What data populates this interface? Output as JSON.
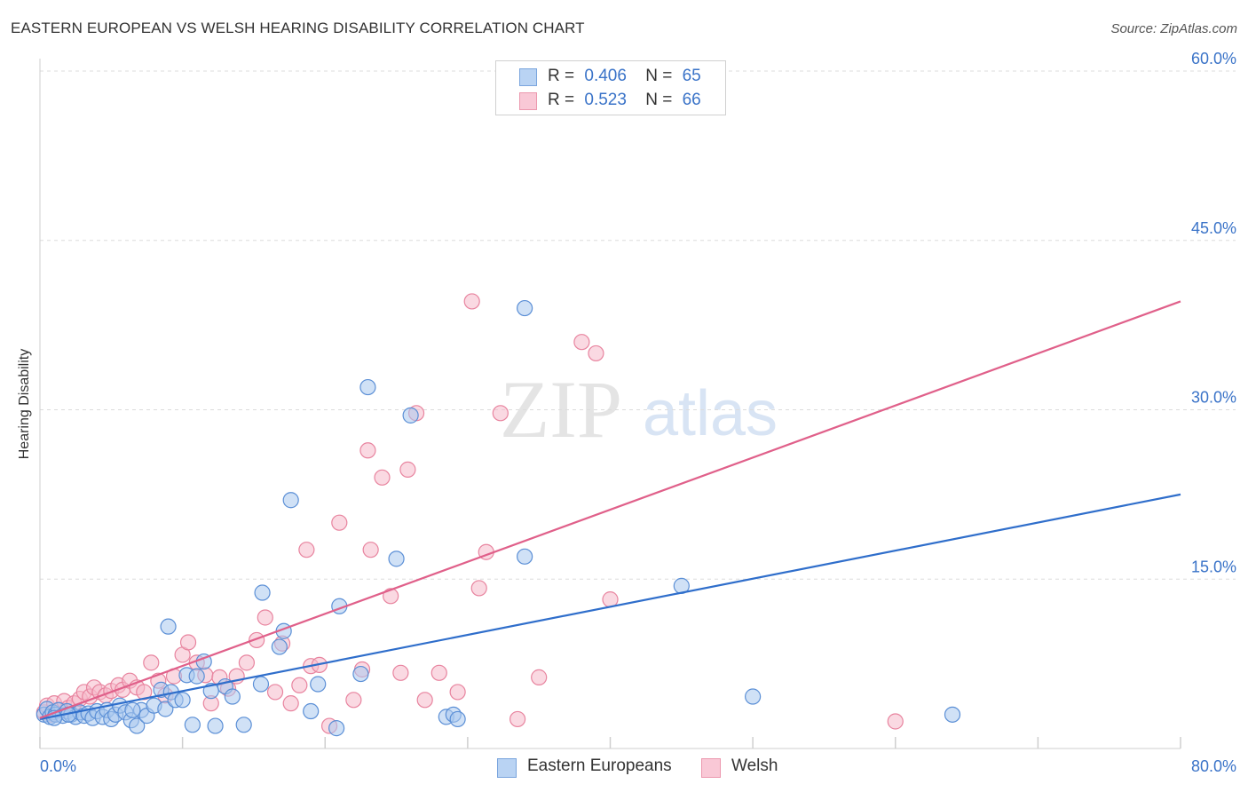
{
  "title": "EASTERN EUROPEAN VS WELSH HEARING DISABILITY CORRELATION CHART",
  "source": "Source: ZipAtlas.com",
  "watermark": {
    "zip": "ZIP",
    "atlas": "atlas"
  },
  "legend": {
    "rows": [
      {
        "r_label": "R =",
        "r_value": "0.406",
        "n_label": "N =",
        "n_value": "65"
      },
      {
        "r_label": "R =",
        "r_value": "0.523",
        "n_label": "N =",
        "n_value": "66"
      }
    ]
  },
  "colors": {
    "blue_fill": "#a9c8ef",
    "blue_stroke": "#5b8fd6",
    "blue_line": "#2f6ecb",
    "pink_fill": "#f6b9cb",
    "pink_stroke": "#e8849f",
    "pink_line": "#e0608a",
    "grid": "#dcdcdc",
    "tick_label": "#3a73c8"
  },
  "chart_data": {
    "type": "scatter",
    "title": "EASTERN EUROPEAN VS WELSH HEARING DISABILITY CORRELATION CHART",
    "xlabel": "",
    "ylabel": "Hearing Disability",
    "xlim": [
      0,
      80
    ],
    "ylim": [
      0,
      60
    ],
    "x_tick_labels": [
      "0.0%",
      "80.0%"
    ],
    "y_ticks": [
      15,
      30,
      45,
      60
    ],
    "y_tick_labels": [
      "15.0%",
      "30.0%",
      "45.0%",
      "60.0%"
    ],
    "legend_position": "bottom",
    "series": [
      {
        "name": "Eastern Europeans",
        "color": "#5b8fd6",
        "R": 0.406,
        "N": 65,
        "trend": {
          "x": [
            0,
            80
          ],
          "y": [
            2.6,
            22.5
          ]
        },
        "points": [
          [
            0.3,
            3.0
          ],
          [
            0.5,
            3.5
          ],
          [
            0.7,
            2.8
          ],
          [
            0.9,
            3.2
          ],
          [
            1.1,
            3.0
          ],
          [
            1.3,
            3.4
          ],
          [
            1.6,
            2.9
          ],
          [
            1.9,
            3.3
          ],
          [
            2.2,
            3.0
          ],
          [
            2.5,
            2.8
          ],
          [
            2.8,
            3.2
          ],
          [
            3.1,
            2.9
          ],
          [
            3.4,
            3.1
          ],
          [
            3.7,
            2.7
          ],
          [
            4.0,
            3.3
          ],
          [
            4.4,
            2.8
          ],
          [
            4.7,
            3.4
          ],
          [
            5.0,
            2.6
          ],
          [
            5.3,
            3.0
          ],
          [
            5.6,
            3.8
          ],
          [
            6.0,
            3.2
          ],
          [
            6.4,
            2.5
          ],
          [
            6.8,
            2.0
          ],
          [
            7.1,
            3.4
          ],
          [
            7.5,
            2.9
          ],
          [
            8.0,
            3.8
          ],
          [
            8.5,
            5.2
          ],
          [
            8.8,
            3.5
          ],
          [
            9.2,
            5.0
          ],
          [
            9.5,
            4.3
          ],
          [
            10.0,
            4.3
          ],
          [
            10.3,
            6.5
          ],
          [
            10.7,
            2.1
          ],
          [
            11.0,
            6.4
          ],
          [
            11.5,
            7.7
          ],
          [
            12.0,
            5.1
          ],
          [
            12.3,
            2.0
          ],
          [
            13.0,
            5.5
          ],
          [
            13.5,
            4.6
          ],
          [
            14.3,
            2.1
          ],
          [
            15.5,
            5.7
          ],
          [
            15.6,
            13.8
          ],
          [
            16.8,
            9.0
          ],
          [
            17.1,
            10.4
          ],
          [
            17.6,
            22.0
          ],
          [
            19.0,
            3.3
          ],
          [
            19.5,
            5.7
          ],
          [
            20.8,
            1.8
          ],
          [
            21.0,
            12.6
          ],
          [
            22.5,
            6.6
          ],
          [
            23.0,
            32.0
          ],
          [
            25.0,
            16.8
          ],
          [
            26.0,
            29.5
          ],
          [
            28.5,
            2.8
          ],
          [
            29.0,
            3.0
          ],
          [
            29.3,
            2.6
          ],
          [
            34.0,
            39.0
          ],
          [
            34.0,
            17.0
          ],
          [
            45.0,
            14.4
          ],
          [
            50.0,
            4.6
          ],
          [
            64.0,
            3.0
          ],
          [
            2.0,
            3.0
          ],
          [
            6.5,
            3.4
          ],
          [
            9.0,
            10.8
          ],
          [
            1.0,
            2.7
          ]
        ]
      },
      {
        "name": "Welsh",
        "color": "#e8849f",
        "R": 0.523,
        "N": 66,
        "trend": {
          "x": [
            0,
            80
          ],
          "y": [
            2.7,
            39.6
          ]
        },
        "points": [
          [
            0.3,
            3.2
          ],
          [
            0.5,
            3.8
          ],
          [
            0.8,
            3.0
          ],
          [
            1.0,
            4.0
          ],
          [
            1.4,
            3.4
          ],
          [
            1.7,
            4.2
          ],
          [
            2.0,
            3.6
          ],
          [
            2.4,
            4.0
          ],
          [
            2.8,
            4.4
          ],
          [
            3.1,
            5.0
          ],
          [
            3.5,
            4.6
          ],
          [
            3.8,
            5.4
          ],
          [
            4.2,
            5.0
          ],
          [
            4.6,
            4.7
          ],
          [
            5.0,
            5.1
          ],
          [
            5.5,
            5.6
          ],
          [
            5.8,
            5.2
          ],
          [
            6.3,
            6.0
          ],
          [
            6.8,
            5.4
          ],
          [
            7.3,
            5.0
          ],
          [
            7.8,
            7.6
          ],
          [
            8.3,
            6.0
          ],
          [
            8.8,
            4.7
          ],
          [
            9.4,
            6.4
          ],
          [
            10.0,
            8.3
          ],
          [
            10.4,
            9.4
          ],
          [
            11.0,
            7.6
          ],
          [
            11.6,
            6.5
          ],
          [
            12.0,
            4.0
          ],
          [
            12.6,
            6.3
          ],
          [
            13.2,
            5.3
          ],
          [
            13.8,
            6.4
          ],
          [
            14.5,
            7.6
          ],
          [
            15.2,
            9.6
          ],
          [
            15.8,
            11.6
          ],
          [
            16.5,
            5.0
          ],
          [
            17.0,
            9.3
          ],
          [
            17.6,
            4.0
          ],
          [
            18.2,
            5.6
          ],
          [
            18.7,
            17.6
          ],
          [
            19.0,
            7.3
          ],
          [
            19.6,
            7.4
          ],
          [
            20.3,
            2.0
          ],
          [
            21.0,
            20.0
          ],
          [
            22.0,
            4.3
          ],
          [
            22.6,
            7.0
          ],
          [
            23.0,
            26.4
          ],
          [
            23.2,
            17.6
          ],
          [
            24.0,
            24.0
          ],
          [
            24.6,
            13.5
          ],
          [
            25.3,
            6.7
          ],
          [
            25.8,
            24.7
          ],
          [
            26.4,
            29.7
          ],
          [
            27.0,
            4.3
          ],
          [
            28.0,
            6.7
          ],
          [
            29.3,
            5.0
          ],
          [
            30.3,
            39.6
          ],
          [
            30.8,
            14.2
          ],
          [
            31.3,
            17.4
          ],
          [
            32.3,
            29.7
          ],
          [
            33.5,
            2.6
          ],
          [
            35.0,
            6.3
          ],
          [
            38.0,
            36.0
          ],
          [
            39.0,
            35.0
          ],
          [
            40.0,
            13.2
          ],
          [
            60.0,
            2.4
          ]
        ]
      }
    ]
  },
  "bottom_legend": [
    {
      "label": "Eastern Europeans"
    },
    {
      "label": "Welsh"
    }
  ]
}
